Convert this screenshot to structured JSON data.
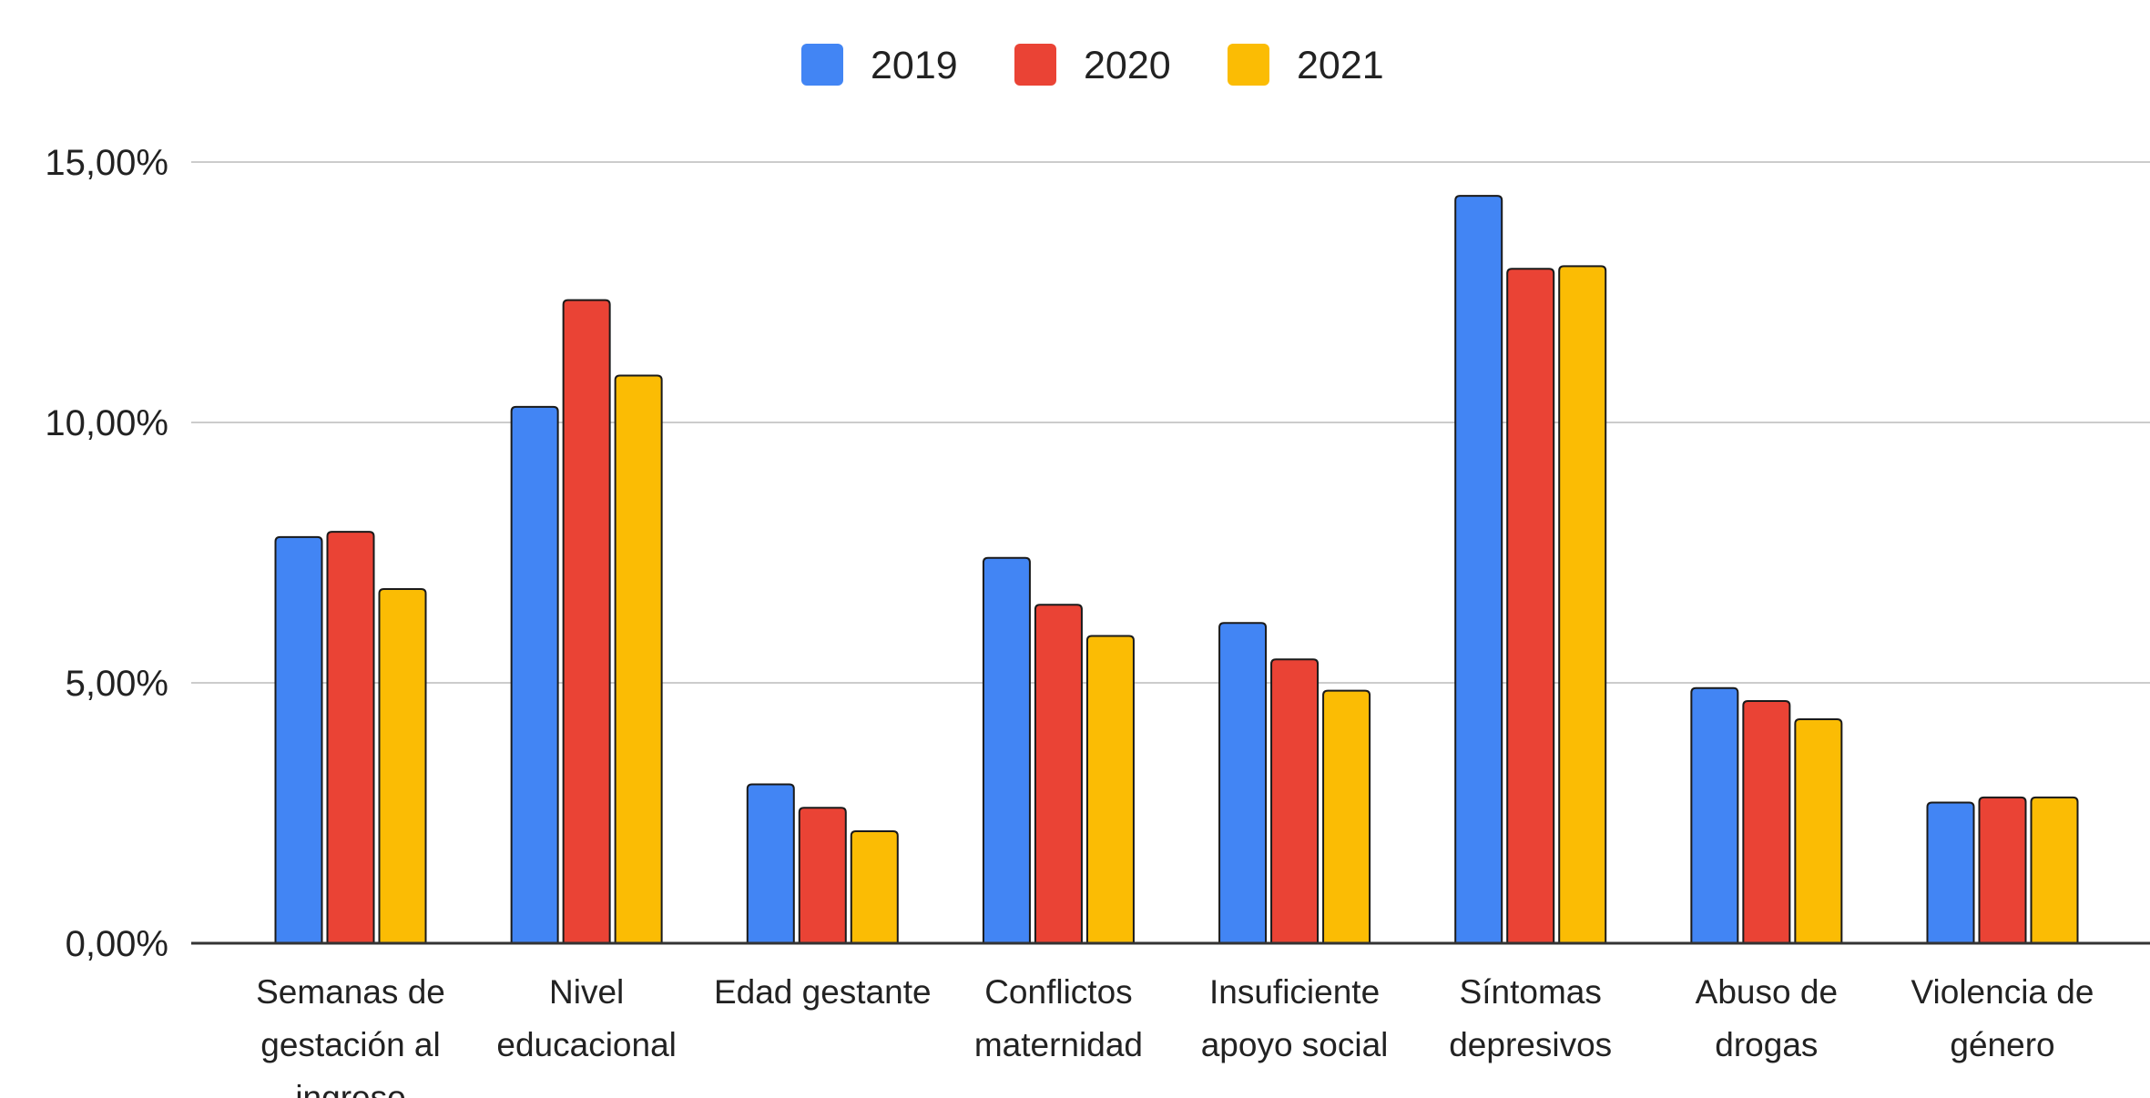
{
  "chart_data": {
    "type": "bar",
    "title": "",
    "xlabel": "",
    "ylabel": "",
    "ylim": [
      0,
      15
    ],
    "yticks": [
      "0,00%",
      "5,00%",
      "10,00%",
      "15,00%"
    ],
    "grid": true,
    "legend_position": "top-center",
    "categories": [
      [
        "Semanas de",
        "gestación al",
        "ingreso"
      ],
      [
        "Nivel",
        "educacional"
      ],
      [
        "Edad gestante"
      ],
      [
        "Conflictos",
        "maternidad"
      ],
      [
        "Insuficiente",
        "apoyo social"
      ],
      [
        "Síntomas",
        "depresivos"
      ],
      [
        "Abuso de",
        "drogas"
      ],
      [
        "Violencia de",
        "género"
      ]
    ],
    "series": [
      {
        "name": "2019",
        "color": "#4285F4",
        "values": [
          7.8,
          10.3,
          3.05,
          7.4,
          6.15,
          14.35,
          4.9,
          2.7
        ]
      },
      {
        "name": "2020",
        "color": "#EA4335",
        "values": [
          7.9,
          12.35,
          2.6,
          6.5,
          5.45,
          12.95,
          4.65,
          2.8
        ]
      },
      {
        "name": "2021",
        "color": "#FBBC04",
        "values": [
          6.8,
          10.9,
          2.15,
          5.9,
          4.85,
          13.0,
          4.3,
          2.8
        ]
      }
    ]
  }
}
